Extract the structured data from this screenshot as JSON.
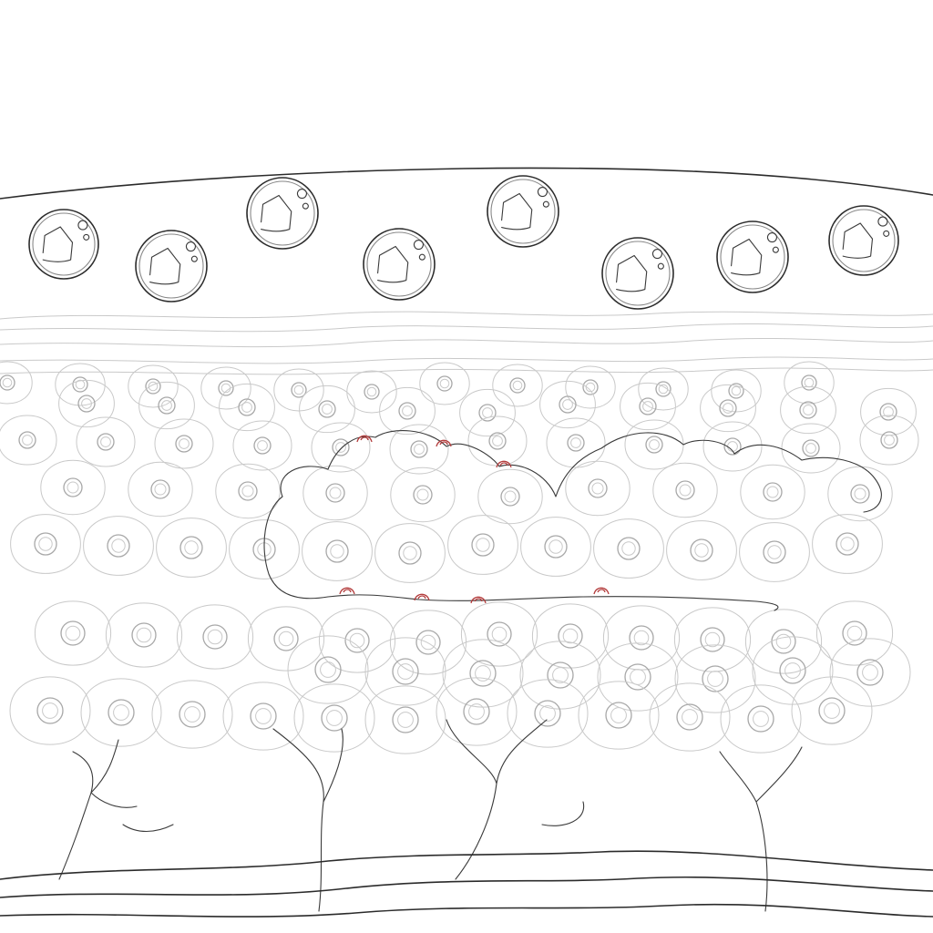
{
  "diagram": {
    "colors": {
      "ink": "#2b2b2b",
      "faint_cell": "#c9c9c9",
      "nucleus": "#a8a8a8",
      "accent_red": "#b23a3a",
      "background": "#ffffff"
    },
    "elements": {
      "top_vesicles": "large-round-vesicle",
      "cell_layer": "epithelial-cell",
      "cluster": "central-cell-cluster",
      "red_marks": "red-attachment-mark",
      "branches": "branching-fiber",
      "base": "basement-membrane-waves"
    }
  }
}
